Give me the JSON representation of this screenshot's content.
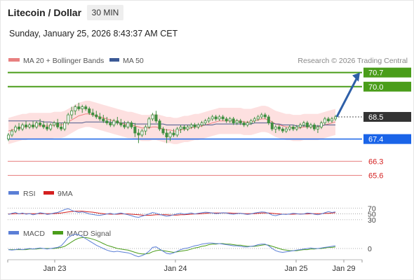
{
  "header": {
    "pair": "Litecoin / Dollar",
    "timeframe": "30 MIN",
    "datetime": "Sunday, January 25, 2026 8:43:37 AM CET"
  },
  "legend": {
    "ma20_bb": "MA 20 + Bollinger Bands",
    "ma50": "MA 50",
    "credit": "Research © 2026 Trading Central",
    "rsi": "RSI",
    "rsi_ma": "9MA",
    "macd": "MACD",
    "macd_signal": "MACD Signal"
  },
  "colors": {
    "candle": "#3f8f3f",
    "green_line": "#4a9d1a",
    "blue_line": "#1a64e8",
    "red_line": "#e88080",
    "bb_fill": "#fde0e0",
    "ma20": "#f08080",
    "ma50": "#4a5a8c",
    "arrow": "#2e5fa8",
    "rsi": "#5b7fd6",
    "rsi_ma": "#d42020",
    "macd": "#5b7fd6",
    "macd_signal": "#4a9d1a"
  },
  "chart_data": {
    "type": "candlestick",
    "ylim": [
      65.2,
      71.0
    ],
    "x_ticks": [
      "Jan 23",
      "Jan 24",
      "Jan 25",
      "Jan 29"
    ],
    "levels": [
      {
        "label": "70.7",
        "value": 70.7,
        "kind": "resistance"
      },
      {
        "label": "70.0",
        "value": 70.0,
        "kind": "resistance"
      },
      {
        "label": "68.5",
        "value": 68.5,
        "kind": "last"
      },
      {
        "label": "67.4",
        "value": 67.4,
        "kind": "support"
      },
      {
        "label": "66.3",
        "value": 66.3,
        "kind": "minor"
      },
      {
        "label": "65.6",
        "value": 65.6,
        "kind": "minor"
      }
    ],
    "projection": {
      "from": 68.5,
      "to": 70.7
    },
    "candles": [
      [
        67.4,
        67.7,
        67.3,
        67.6
      ],
      [
        67.6,
        67.9,
        67.5,
        67.8
      ],
      [
        67.8,
        68.1,
        67.7,
        68.0
      ],
      [
        68.0,
        68.2,
        67.8,
        67.9
      ],
      [
        67.9,
        68.2,
        67.8,
        68.1
      ],
      [
        68.1,
        68.3,
        67.9,
        68.0
      ],
      [
        68.0,
        68.2,
        67.9,
        68.1
      ],
      [
        68.1,
        68.3,
        67.9,
        68.0
      ],
      [
        68.0,
        68.3,
        67.9,
        68.2
      ],
      [
        68.2,
        68.4,
        68.0,
        68.1
      ],
      [
        68.1,
        68.3,
        67.9,
        68.0
      ],
      [
        68.0,
        68.2,
        67.8,
        67.9
      ],
      [
        67.9,
        68.2,
        67.8,
        68.1
      ],
      [
        68.1,
        68.3,
        68.0,
        68.2
      ],
      [
        68.2,
        68.4,
        67.9,
        68.0
      ],
      [
        68.0,
        68.2,
        67.8,
        67.9
      ],
      [
        67.9,
        68.3,
        67.8,
        68.2
      ],
      [
        68.2,
        68.7,
        68.1,
        68.6
      ],
      [
        68.6,
        69.0,
        68.4,
        68.8
      ],
      [
        68.8,
        69.1,
        68.6,
        69.0
      ],
      [
        69.0,
        69.2,
        68.8,
        68.9
      ],
      [
        68.9,
        69.1,
        68.7,
        69.0
      ],
      [
        69.0,
        69.1,
        68.8,
        68.9
      ],
      [
        68.9,
        69.0,
        68.6,
        68.7
      ],
      [
        68.7,
        68.9,
        68.5,
        68.6
      ],
      [
        68.6,
        68.8,
        68.4,
        68.5
      ],
      [
        68.5,
        68.7,
        68.3,
        68.4
      ],
      [
        68.4,
        68.6,
        68.2,
        68.3
      ],
      [
        68.3,
        68.5,
        68.1,
        68.2
      ],
      [
        68.2,
        68.4,
        68.0,
        68.1
      ],
      [
        68.1,
        68.4,
        68.0,
        68.3
      ],
      [
        68.3,
        68.5,
        68.1,
        68.2
      ],
      [
        68.2,
        68.4,
        68.0,
        68.1
      ],
      [
        68.1,
        68.3,
        67.9,
        68.0
      ],
      [
        68.0,
        68.3,
        67.9,
        68.2
      ],
      [
        68.2,
        68.3,
        67.9,
        68.0
      ],
      [
        68.0,
        68.2,
        67.5,
        67.7
      ],
      [
        67.7,
        67.9,
        67.2,
        67.6
      ],
      [
        67.6,
        67.9,
        67.5,
        67.8
      ],
      [
        67.8,
        68.1,
        67.6,
        68.0
      ],
      [
        68.0,
        68.5,
        67.9,
        68.4
      ],
      [
        68.4,
        68.7,
        68.3,
        68.6
      ],
      [
        68.6,
        68.8,
        68.2,
        68.3
      ],
      [
        68.3,
        68.4,
        67.8,
        67.9
      ],
      [
        67.9,
        68.0,
        67.6,
        67.7
      ],
      [
        67.7,
        67.9,
        67.2,
        67.5
      ],
      [
        67.5,
        67.8,
        67.3,
        67.7
      ],
      [
        67.7,
        67.9,
        67.5,
        67.6
      ],
      [
        67.6,
        68.0,
        67.5,
        67.9
      ],
      [
        67.9,
        68.1,
        67.7,
        68.0
      ],
      [
        68.0,
        68.1,
        67.8,
        67.9
      ],
      [
        67.9,
        68.1,
        67.8,
        68.0
      ],
      [
        68.0,
        68.2,
        67.9,
        68.1
      ],
      [
        68.1,
        68.2,
        67.9,
        68.0
      ],
      [
        68.0,
        68.2,
        67.9,
        68.1
      ],
      [
        68.1,
        68.3,
        68.0,
        68.2
      ],
      [
        68.2,
        68.4,
        68.1,
        68.3
      ],
      [
        68.3,
        68.5,
        68.2,
        68.4
      ],
      [
        68.4,
        68.6,
        68.3,
        68.5
      ],
      [
        68.5,
        68.6,
        68.3,
        68.4
      ],
      [
        68.4,
        68.6,
        68.3,
        68.5
      ],
      [
        68.5,
        68.6,
        68.3,
        68.4
      ],
      [
        68.4,
        68.5,
        68.2,
        68.3
      ],
      [
        68.3,
        68.5,
        68.2,
        68.4
      ],
      [
        68.4,
        68.5,
        68.1,
        68.2
      ],
      [
        68.2,
        68.4,
        68.1,
        68.3
      ],
      [
        68.3,
        68.4,
        68.1,
        68.2
      ],
      [
        68.2,
        68.3,
        68.0,
        68.1
      ],
      [
        68.1,
        68.3,
        68.0,
        68.2
      ],
      [
        68.2,
        68.4,
        68.1,
        68.3
      ],
      [
        68.3,
        68.5,
        68.2,
        68.4
      ],
      [
        68.4,
        68.6,
        68.3,
        68.5
      ],
      [
        68.5,
        68.7,
        68.4,
        68.6
      ],
      [
        68.6,
        68.7,
        68.4,
        68.5
      ],
      [
        68.5,
        68.6,
        68.1,
        68.2
      ],
      [
        68.2,
        68.3,
        67.8,
        67.9
      ],
      [
        67.9,
        68.1,
        67.7,
        68.0
      ],
      [
        68.0,
        68.1,
        67.8,
        67.9
      ],
      [
        67.9,
        68.0,
        67.7,
        67.8
      ],
      [
        67.8,
        68.0,
        67.7,
        67.9
      ],
      [
        67.9,
        68.1,
        67.8,
        68.0
      ],
      [
        68.0,
        68.1,
        67.8,
        67.9
      ],
      [
        67.9,
        68.1,
        67.8,
        68.0
      ],
      [
        68.0,
        68.2,
        67.9,
        68.1
      ],
      [
        68.1,
        68.3,
        68.0,
        68.2
      ],
      [
        68.2,
        68.3,
        67.9,
        68.0
      ],
      [
        68.0,
        68.2,
        67.9,
        68.1
      ],
      [
        68.1,
        68.2,
        67.8,
        67.9
      ],
      [
        67.9,
        68.1,
        67.7,
        68.0
      ],
      [
        68.0,
        68.3,
        67.9,
        68.2
      ],
      [
        68.2,
        68.5,
        68.1,
        68.4
      ],
      [
        68.4,
        68.5,
        68.2,
        68.3
      ],
      [
        68.3,
        68.5,
        68.2,
        68.4
      ],
      [
        68.4,
        68.6,
        68.3,
        68.5
      ]
    ],
    "ma20": [
      67.8,
      67.85,
      67.9,
      67.95,
      68.0,
      68.0,
      68.05,
      68.05,
      68.05,
      68.05,
      68.05,
      68.05,
      68.05,
      68.1,
      68.1,
      68.1,
      68.15,
      68.25,
      68.35,
      68.45,
      68.55,
      68.6,
      68.65,
      68.65,
      68.6,
      68.55,
      68.5,
      68.45,
      68.4,
      68.35,
      68.3,
      68.25,
      68.2,
      68.15,
      68.1,
      68.1,
      68.05,
      68.0,
      67.95,
      67.95,
      67.95,
      68.0,
      68.0,
      67.95,
      67.9,
      67.85,
      67.85,
      67.8,
      67.8,
      67.85,
      67.9,
      67.9,
      67.95,
      68.0,
      68.0,
      68.05,
      68.1,
      68.15,
      68.2,
      68.25,
      68.3,
      68.3,
      68.3,
      68.3,
      68.3,
      68.3,
      68.3,
      68.25,
      68.25,
      68.25,
      68.3,
      68.35,
      68.4,
      68.4,
      68.35,
      68.25,
      68.15,
      68.1,
      68.05,
      68.0,
      68.0,
      67.95,
      67.95,
      67.95,
      68.0,
      68.0,
      68.0,
      68.0,
      68.0,
      68.05,
      68.1,
      68.15,
      68.2,
      68.25
    ],
    "ma50": [
      68.3,
      68.3,
      68.3,
      68.3,
      68.3,
      68.3,
      68.3,
      68.3,
      68.3,
      68.3,
      68.25,
      68.25,
      68.25,
      68.2,
      68.2,
      68.2,
      68.2,
      68.2,
      68.2,
      68.2,
      68.2,
      68.2,
      68.25,
      68.25,
      68.25,
      68.25,
      68.25,
      68.25,
      68.25,
      68.25,
      68.2,
      68.2,
      68.2,
      68.2,
      68.2,
      68.2,
      68.15,
      68.15,
      68.15,
      68.15,
      68.15,
      68.15,
      68.15,
      68.15,
      68.15,
      68.1,
      68.1,
      68.1,
      68.1,
      68.1,
      68.1,
      68.1,
      68.1,
      68.1,
      68.1,
      68.1,
      68.1,
      68.1,
      68.1,
      68.15,
      68.15,
      68.15,
      68.15,
      68.15,
      68.15,
      68.15,
      68.15,
      68.15,
      68.15,
      68.15,
      68.2,
      68.2,
      68.2,
      68.2,
      68.2,
      68.2,
      68.15,
      68.15,
      68.1,
      68.1,
      68.1,
      68.1,
      68.05,
      68.05,
      68.05,
      68.05,
      68.05,
      68.05,
      68.05,
      68.05,
      68.1,
      68.1,
      68.1,
      68.1
    ],
    "bb_width": 0.65,
    "rsi": {
      "levels": [
        "70",
        "50",
        "30"
      ],
      "rsi": [
        48,
        52,
        55,
        50,
        53,
        49,
        51,
        47,
        50,
        54,
        52,
        48,
        50,
        53,
        55,
        60,
        65,
        68,
        62,
        58,
        55,
        57,
        54,
        50,
        48,
        46,
        45,
        47,
        50,
        52,
        49,
        51,
        53,
        50,
        47,
        44,
        40,
        38,
        42,
        46,
        50,
        55,
        52,
        48,
        45,
        42,
        44,
        47,
        50,
        52,
        49,
        51,
        53,
        50,
        52,
        54,
        56,
        55,
        53,
        51,
        52,
        54,
        53,
        50,
        49,
        51,
        52,
        50,
        48,
        50,
        53,
        55,
        57,
        56,
        52,
        46,
        44,
        47,
        49,
        48,
        50,
        52,
        51,
        49,
        50,
        53,
        52,
        49,
        47,
        50,
        54,
        58,
        55,
        57
      ],
      "ma9": [
        50,
        50,
        51,
        51,
        51,
        51,
        51,
        51,
        51,
        51,
        51,
        51,
        51,
        51,
        52,
        53,
        55,
        57,
        58,
        59,
        59,
        59,
        58,
        57,
        56,
        54,
        52,
        51,
        50,
        49,
        49,
        49,
        50,
        50,
        50,
        49,
        48,
        47,
        46,
        45,
        45,
        46,
        47,
        47,
        47,
        47,
        46,
        46,
        46,
        47,
        47,
        48,
        49,
        50,
        50,
        51,
        52,
        53,
        53,
        53,
        53,
        53,
        53,
        53,
        52,
        52,
        52,
        51,
        51,
        51,
        51,
        52,
        53,
        53,
        53,
        52,
        51,
        50,
        49,
        49,
        49,
        49,
        50,
        50,
        50,
        50,
        51,
        51,
        51,
        51,
        52,
        52,
        53,
        54
      ]
    },
    "macd": {
      "zero_label": "0",
      "macd": [
        -0.02,
        -0.03,
        -0.02,
        -0.01,
        -0.02,
        -0.01,
        0.0,
        -0.01,
        0.0,
        0.01,
        0.0,
        -0.01,
        0.0,
        0.01,
        0.02,
        0.05,
        0.12,
        0.2,
        0.24,
        0.26,
        0.25,
        0.22,
        0.18,
        0.14,
        0.1,
        0.06,
        0.03,
        0.0,
        -0.03,
        -0.05,
        -0.06,
        -0.05,
        -0.06,
        -0.07,
        -0.08,
        -0.1,
        -0.13,
        -0.15,
        -0.13,
        -0.1,
        -0.05,
        0.02,
        0.03,
        -0.01,
        -0.05,
        -0.09,
        -0.1,
        -0.08,
        -0.05,
        -0.02,
        0.0,
        0.01,
        0.03,
        0.05,
        0.06,
        0.08,
        0.09,
        0.1,
        0.1,
        0.09,
        0.09,
        0.08,
        0.07,
        0.06,
        0.05,
        0.05,
        0.04,
        0.03,
        0.03,
        0.04,
        0.05,
        0.07,
        0.08,
        0.08,
        0.05,
        0.0,
        -0.04,
        -0.06,
        -0.07,
        -0.06,
        -0.05,
        -0.04,
        -0.03,
        -0.02,
        -0.01,
        0.0,
        0.01,
        0.0,
        0.0,
        0.01,
        0.02,
        0.03,
        0.04,
        0.05
      ],
      "signal": [
        -0.02,
        -0.02,
        -0.02,
        -0.02,
        -0.02,
        -0.02,
        -0.01,
        -0.01,
        -0.01,
        0.0,
        0.0,
        0.0,
        0.0,
        0.0,
        0.01,
        0.02,
        0.04,
        0.08,
        0.12,
        0.16,
        0.19,
        0.2,
        0.2,
        0.19,
        0.17,
        0.15,
        0.12,
        0.09,
        0.06,
        0.04,
        0.02,
        0.0,
        -0.01,
        -0.02,
        -0.03,
        -0.05,
        -0.07,
        -0.09,
        -0.1,
        -0.1,
        -0.09,
        -0.06,
        -0.04,
        -0.03,
        -0.04,
        -0.05,
        -0.06,
        -0.07,
        -0.06,
        -0.05,
        -0.04,
        -0.03,
        -0.01,
        0.01,
        0.02,
        0.04,
        0.05,
        0.07,
        0.08,
        0.08,
        0.09,
        0.09,
        0.08,
        0.08,
        0.07,
        0.06,
        0.06,
        0.05,
        0.04,
        0.04,
        0.04,
        0.05,
        0.06,
        0.07,
        0.06,
        0.04,
        0.02,
        0.0,
        -0.02,
        -0.03,
        -0.04,
        -0.04,
        -0.04,
        -0.03,
        -0.02,
        -0.02,
        -0.01,
        -0.01,
        0.0,
        0.0,
        0.01,
        0.02,
        0.02,
        0.03
      ]
    }
  }
}
